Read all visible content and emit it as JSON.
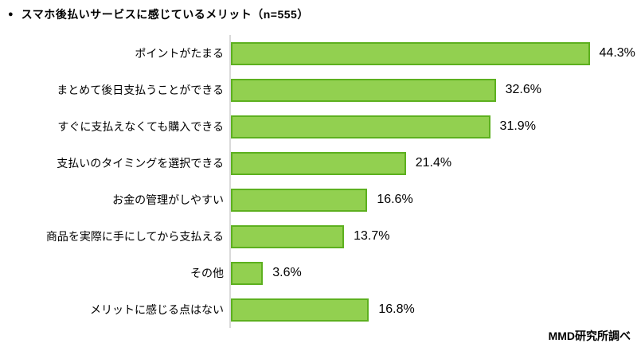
{
  "title": {
    "bullet": "●",
    "text": "スマホ後払いサービスに感じているメリット（n=555）"
  },
  "footer": {
    "source": "MMD研究所調べ"
  },
  "colors": {
    "bar_fill": "#92d050",
    "bar_border": "#5db01f",
    "axis_line": "#d9d9d9",
    "text": "#000000"
  },
  "chart_data": {
    "type": "bar",
    "orientation": "horizontal",
    "title": "スマホ後払いサービスに感じているメリット（n=555）",
    "sample_size": "n=555",
    "xlabel": "",
    "ylabel": "",
    "xlim": [
      0,
      50
    ],
    "grid": false,
    "legend": false,
    "categories": [
      "ポイントがたまる",
      "まとめて後日支払うことができる",
      "すぐに支払えなくても購入できる",
      "支払いのタイミングを選択できる",
      "お金の管理がしやすい",
      "商品を実際に手にしてから支払える",
      "その他",
      "メリットに感じる点はない"
    ],
    "values": [
      44.3,
      32.6,
      31.9,
      21.4,
      16.6,
      13.7,
      3.6,
      16.8
    ],
    "value_labels": [
      "44.3%",
      "32.6%",
      "31.9%",
      "21.4%",
      "16.6%",
      "13.7%",
      "3.6%",
      "16.8%"
    ]
  }
}
